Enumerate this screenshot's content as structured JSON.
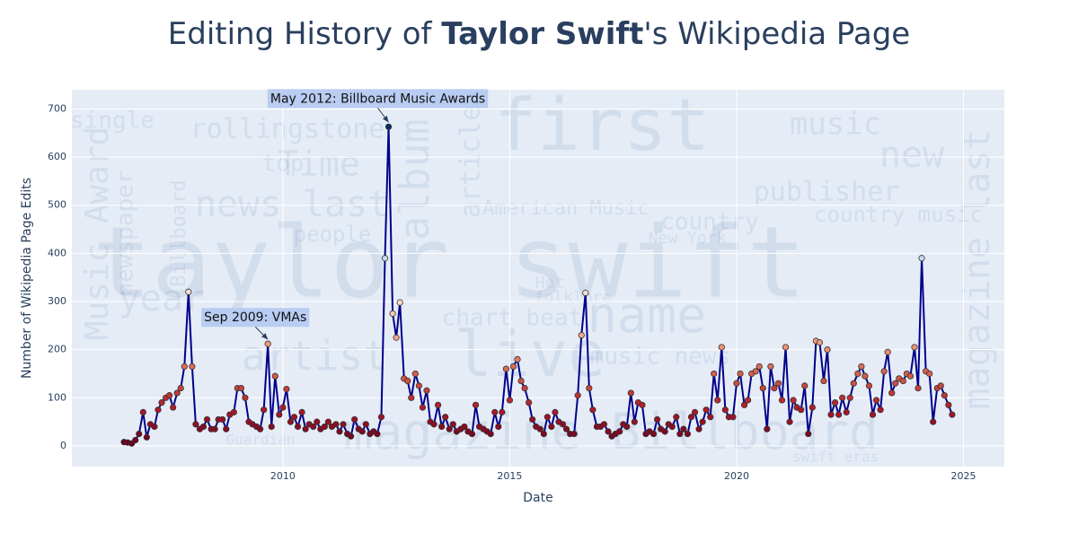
{
  "chart_data": {
    "type": "line",
    "title": [
      "Editing History of ",
      "Taylor Swift",
      "'s Wikipedia Page"
    ],
    "x_label": "Date",
    "y_label": "Number of Wikipedia Page Edits",
    "xlim": [
      2005.35,
      2025.9
    ],
    "ylim": [
      -43,
      740
    ],
    "xticks": [
      2010,
      2015,
      2020,
      2025
    ],
    "yticks": [
      0,
      100,
      200,
      300,
      400,
      500,
      600,
      700
    ],
    "grid": true,
    "line_color": "#00008b",
    "colorscale": [
      "#67001f",
      "#b2182b",
      "#d6604d",
      "#f4a582",
      "#fddbc7",
      "#d1e5f0",
      "#92c5de",
      "#4393c3",
      "#2166ac",
      "#053061"
    ],
    "x": [
      2006.5,
      2006.58,
      2006.67,
      2006.75,
      2006.83,
      2006.92,
      2007,
      2007.08,
      2007.17,
      2007.25,
      2007.33,
      2007.42,
      2007.5,
      2007.58,
      2007.67,
      2007.75,
      2007.83,
      2007.92,
      2008,
      2008.08,
      2008.17,
      2008.25,
      2008.33,
      2008.42,
      2008.5,
      2008.58,
      2008.67,
      2008.75,
      2008.83,
      2008.92,
      2009,
      2009.08,
      2009.17,
      2009.25,
      2009.33,
      2009.42,
      2009.5,
      2009.58,
      2009.67,
      2009.75,
      2009.83,
      2009.92,
      2010,
      2010.08,
      2010.17,
      2010.25,
      2010.33,
      2010.42,
      2010.5,
      2010.58,
      2010.67,
      2010.75,
      2010.83,
      2010.92,
      2011,
      2011.08,
      2011.17,
      2011.25,
      2011.33,
      2011.42,
      2011.5,
      2011.58,
      2011.67,
      2011.75,
      2011.83,
      2011.92,
      2012,
      2012.08,
      2012.17,
      2012.25,
      2012.33,
      2012.42,
      2012.5,
      2012.58,
      2012.67,
      2012.75,
      2012.83,
      2012.92,
      2013,
      2013.08,
      2013.17,
      2013.25,
      2013.33,
      2013.42,
      2013.5,
      2013.58,
      2013.67,
      2013.75,
      2013.83,
      2013.92,
      2014,
      2014.08,
      2014.17,
      2014.25,
      2014.33,
      2014.42,
      2014.5,
      2014.58,
      2014.67,
      2014.75,
      2014.83,
      2014.92,
      2015,
      2015.08,
      2015.17,
      2015.25,
      2015.33,
      2015.42,
      2015.5,
      2015.58,
      2015.67,
      2015.75,
      2015.83,
      2015.92,
      2016,
      2016.08,
      2016.17,
      2016.25,
      2016.33,
      2016.42,
      2016.5,
      2016.58,
      2016.67,
      2016.75,
      2016.83,
      2016.92,
      2017,
      2017.08,
      2017.17,
      2017.25,
      2017.33,
      2017.42,
      2017.5,
      2017.58,
      2017.67,
      2017.75,
      2017.83,
      2017.92,
      2018,
      2018.08,
      2018.17,
      2018.25,
      2018.33,
      2018.42,
      2018.5,
      2018.58,
      2018.67,
      2018.75,
      2018.83,
      2018.92,
      2019,
      2019.08,
      2019.17,
      2019.25,
      2019.33,
      2019.42,
      2019.5,
      2019.58,
      2019.67,
      2019.75,
      2019.83,
      2019.92,
      2020,
      2020.08,
      2020.17,
      2020.25,
      2020.33,
      2020.42,
      2020.5,
      2020.58,
      2020.67,
      2020.75,
      2020.83,
      2020.92,
      2021,
      2021.08,
      2021.17,
      2021.25,
      2021.33,
      2021.42,
      2021.5,
      2021.58,
      2021.67,
      2021.75,
      2021.83,
      2021.92,
      2022,
      2022.08,
      2022.17,
      2022.25,
      2022.33,
      2022.42,
      2022.5,
      2022.58,
      2022.67,
      2022.75,
      2022.83,
      2022.92,
      2023,
      2023.08,
      2023.17,
      2023.25,
      2023.33,
      2023.42,
      2023.5,
      2023.58,
      2023.67,
      2023.75,
      2023.83,
      2023.92,
      2024,
      2024.08,
      2024.17,
      2024.25,
      2024.33,
      2024.42,
      2024.5,
      2024.58,
      2024.67,
      2024.75
    ],
    "values": [
      8,
      7,
      5,
      12,
      25,
      70,
      18,
      45,
      40,
      75,
      90,
      100,
      105,
      80,
      110,
      120,
      165,
      320,
      165,
      45,
      35,
      40,
      55,
      35,
      35,
      55,
      55,
      35,
      65,
      70,
      120,
      120,
      100,
      50,
      45,
      40,
      35,
      75,
      212,
      40,
      145,
      65,
      80,
      118,
      50,
      60,
      40,
      70,
      35,
      45,
      40,
      50,
      35,
      40,
      50,
      40,
      45,
      30,
      45,
      25,
      20,
      55,
      35,
      30,
      45,
      25,
      30,
      25,
      60,
      390,
      663,
      275,
      225,
      298,
      140,
      135,
      100,
      150,
      125,
      80,
      115,
      50,
      45,
      85,
      40,
      60,
      35,
      45,
      30,
      35,
      40,
      30,
      25,
      85,
      40,
      35,
      30,
      25,
      70,
      40,
      70,
      160,
      95,
      165,
      180,
      135,
      120,
      90,
      55,
      40,
      35,
      25,
      60,
      40,
      70,
      50,
      45,
      35,
      25,
      25,
      105,
      230,
      318,
      120,
      75,
      40,
      40,
      45,
      30,
      20,
      25,
      30,
      45,
      40,
      110,
      50,
      90,
      85,
      25,
      30,
      25,
      55,
      35,
      30,
      45,
      40,
      60,
      25,
      35,
      25,
      60,
      70,
      35,
      50,
      75,
      60,
      150,
      95,
      205,
      75,
      60,
      60,
      130,
      150,
      85,
      95,
      150,
      155,
      165,
      120,
      35,
      165,
      120,
      130,
      95,
      205,
      50,
      95,
      80,
      75,
      125,
      25,
      80,
      218,
      215,
      135,
      200,
      65,
      90,
      65,
      100,
      70,
      100,
      130,
      150,
      165,
      145,
      125,
      65,
      95,
      75,
      155,
      195,
      110,
      130,
      140,
      135,
      150,
      145,
      205,
      120,
      390,
      155,
      150,
      50,
      120,
      125,
      105,
      85,
      65
    ],
    "annotations": [
      {
        "text": "May 2012: Billboard Music Awards",
        "x": 2012.33,
        "y": 663
      },
      {
        "text": "Sep 2009: VMAs",
        "x": 2009.67,
        "y": 212
      }
    ],
    "background_text": [
      "taylor swift",
      "first",
      "live",
      "magazine Billboard",
      "name",
      "artist",
      "news",
      "last",
      "music",
      "new",
      "rollingstone",
      "Time",
      "year",
      "album",
      "article",
      "country",
      "publisher",
      "chart beat",
      "people",
      "top",
      "single",
      "Music Award",
      "newspaper",
      "Billboard",
      "country music",
      "music news",
      "magazine last",
      "Hot",
      "folklore",
      "American Music",
      "New York",
      "swift eras",
      "Guardian"
    ]
  }
}
